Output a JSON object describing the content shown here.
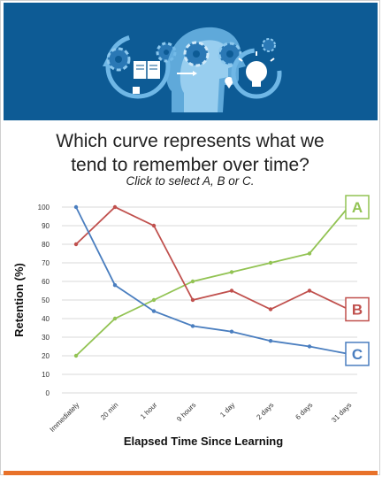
{
  "question": {
    "line1": "Which curve represents what we",
    "line2": "tend to remember over time?",
    "instruction": "Click to select A, B or C."
  },
  "colors": {
    "banner": "#0d5b95",
    "accent": "#e8722a",
    "series_a": "#92c353",
    "series_b": "#c0504d",
    "series_c": "#4a7ebf"
  },
  "icons": [
    "gear-icon",
    "book-icon",
    "head-profile-icon",
    "lightbulb-icon",
    "arrow-cycle-icon",
    "map-pin-icon"
  ],
  "chart_data": {
    "type": "line",
    "categories": [
      "Immediately",
      "20 min",
      "1 hour",
      "9 hours",
      "1 day",
      "2 days",
      "6 days",
      "31 days"
    ],
    "ylabel": "Retention (%)",
    "xlabel": "Elapsed Time Since Learning",
    "ylim": [
      0,
      100
    ],
    "yticks": [
      "0",
      "10",
      "20",
      "30",
      "40",
      "50",
      "60",
      "70",
      "80",
      "90",
      "100"
    ],
    "grid": true,
    "series": [
      {
        "name": "A",
        "color": "#92c353",
        "values": [
          20,
          40,
          50,
          60,
          65,
          70,
          75,
          100
        ]
      },
      {
        "name": "B",
        "color": "#c0504d",
        "values": [
          80,
          100,
          90,
          50,
          55,
          45,
          55,
          45
        ]
      },
      {
        "name": "C",
        "color": "#4a7ebf",
        "values": [
          100,
          58,
          44,
          36,
          33,
          28,
          25,
          21
        ]
      }
    ]
  }
}
